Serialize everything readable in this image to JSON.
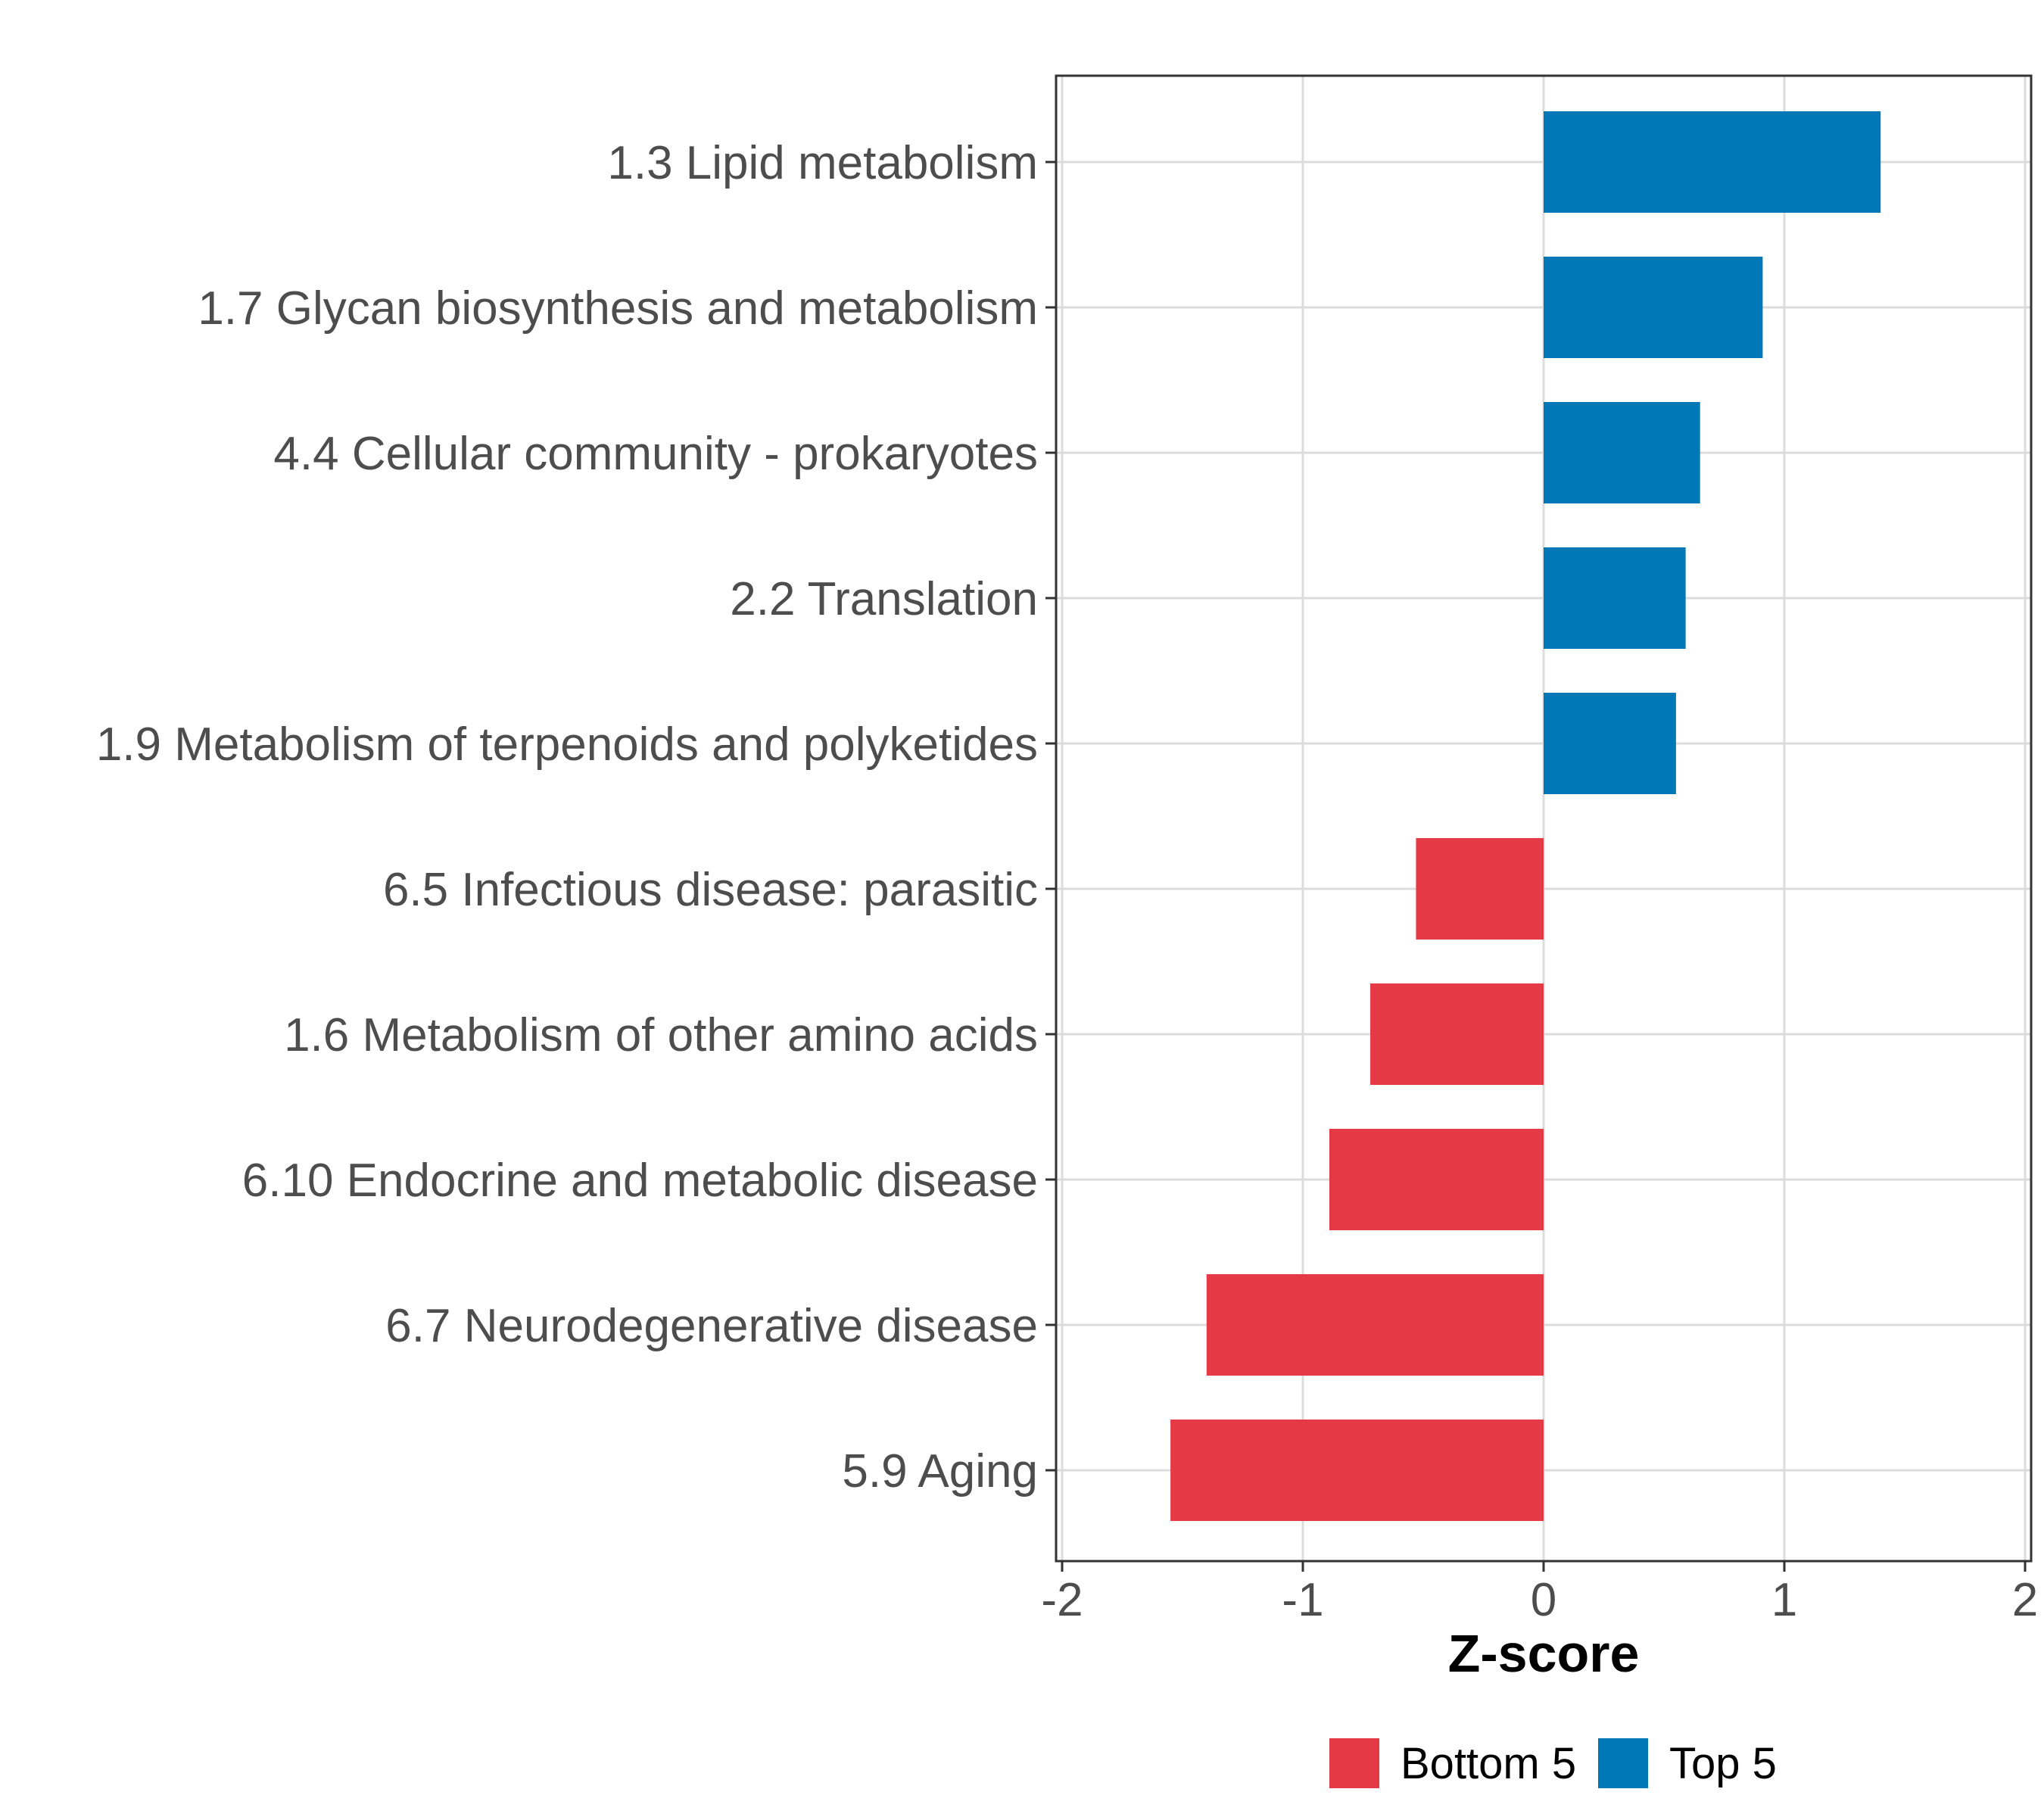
{
  "chart_data": {
    "type": "bar",
    "orientation": "horizontal",
    "xlabel": "Z-score",
    "ylabel": "",
    "xlim": [
      -2,
      2
    ],
    "x_ticks": [
      -2,
      -1,
      0,
      1,
      2
    ],
    "x_tick_labels": [
      "-2",
      "-1",
      "0",
      "1",
      "2"
    ],
    "grid": true,
    "legend_position": "bottom",
    "colors": {
      "Bottom 5": "#e63946",
      "Top 5": "#0077b6"
    },
    "categories": [
      "1.3 Lipid metabolism",
      "1.7 Glycan biosynthesis and metabolism",
      "4.4 Cellular community - prokaryotes",
      "2.2 Translation",
      "1.9 Metabolism of terpenoids and polyketides",
      "6.5 Infectious disease: parasitic",
      "1.6 Metabolism of other amino acids",
      "6.10 Endocrine and metabolic disease",
      "6.7 Neurodegenerative disease",
      "5.9 Aging"
    ],
    "values": [
      1.4,
      0.91,
      0.65,
      0.59,
      0.55,
      -0.53,
      -0.72,
      -0.89,
      -1.4,
      -1.55
    ],
    "groups": [
      "Top 5",
      "Top 5",
      "Top 5",
      "Top 5",
      "Top 5",
      "Bottom 5",
      "Bottom 5",
      "Bottom 5",
      "Bottom 5",
      "Bottom 5"
    ],
    "legend": [
      {
        "label": "Bottom 5",
        "color": "#e63946"
      },
      {
        "label": "Top 5",
        "color": "#0077b6"
      }
    ]
  }
}
